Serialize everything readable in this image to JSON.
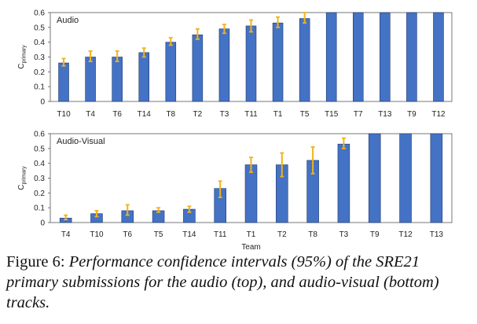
{
  "chart_data": [
    {
      "type": "bar",
      "legend_label": "Audio",
      "ylabel_base": "C",
      "ylabel_sub": "primary",
      "xlabel": "",
      "ylim": [
        0,
        0.6
      ],
      "yticks": [
        "0",
        "0.1",
        "0.2",
        "0.3",
        "0.4",
        "0.5",
        "0.6"
      ],
      "categories": [
        "T10",
        "T4",
        "T6",
        "T14",
        "T8",
        "T2",
        "T3",
        "T11",
        "T1",
        "T5",
        "T15",
        "T7",
        "T13",
        "T9",
        "T12"
      ],
      "values": [
        0.26,
        0.3,
        0.3,
        0.33,
        0.4,
        0.45,
        0.49,
        0.51,
        0.53,
        0.56,
        0.6,
        0.6,
        0.6,
        0.6,
        0.6
      ],
      "err_low": [
        0.24,
        0.27,
        0.27,
        0.3,
        0.38,
        0.42,
        0.46,
        0.47,
        0.5,
        0.53,
        null,
        null,
        null,
        null,
        null
      ],
      "err_high": [
        0.29,
        0.34,
        0.34,
        0.36,
        0.43,
        0.49,
        0.52,
        0.55,
        0.57,
        0.6,
        null,
        null,
        null,
        null,
        null
      ],
      "grid": false,
      "colors": {
        "bar": "#4472c4",
        "bar_edge": "#1f3a6e",
        "error": "#f2b21a"
      }
    },
    {
      "type": "bar",
      "legend_label": "Audio-Visual",
      "ylabel_base": "C",
      "ylabel_sub": "primary",
      "xlabel": "Team",
      "ylim": [
        0,
        0.6
      ],
      "yticks": [
        "0",
        "0.1",
        "0.2",
        "0.3",
        "0.4",
        "0.5",
        "0.6"
      ],
      "categories": [
        "T4",
        "T10",
        "T6",
        "T5",
        "T14",
        "T11",
        "T1",
        "T2",
        "T8",
        "T3",
        "T9",
        "T12",
        "T13"
      ],
      "values": [
        0.03,
        0.06,
        0.08,
        0.08,
        0.09,
        0.23,
        0.39,
        0.39,
        0.42,
        0.53,
        0.6,
        0.6,
        0.6
      ],
      "err_low": [
        0.02,
        0.04,
        0.05,
        0.07,
        0.07,
        0.17,
        0.34,
        0.31,
        0.33,
        0.5,
        null,
        null,
        null
      ],
      "err_high": [
        0.05,
        0.08,
        0.12,
        0.1,
        0.11,
        0.28,
        0.44,
        0.47,
        0.51,
        0.57,
        null,
        null,
        null
      ],
      "grid": false,
      "colors": {
        "bar": "#4472c4",
        "bar_edge": "#1f3a6e",
        "error": "#f2b21a"
      }
    }
  ],
  "caption": {
    "label": "Figure 6:",
    "text": "Performance confidence intervals (95%) of the SRE21 primary submissions for the audio (top), and audio-visual (bottom) tracks."
  }
}
